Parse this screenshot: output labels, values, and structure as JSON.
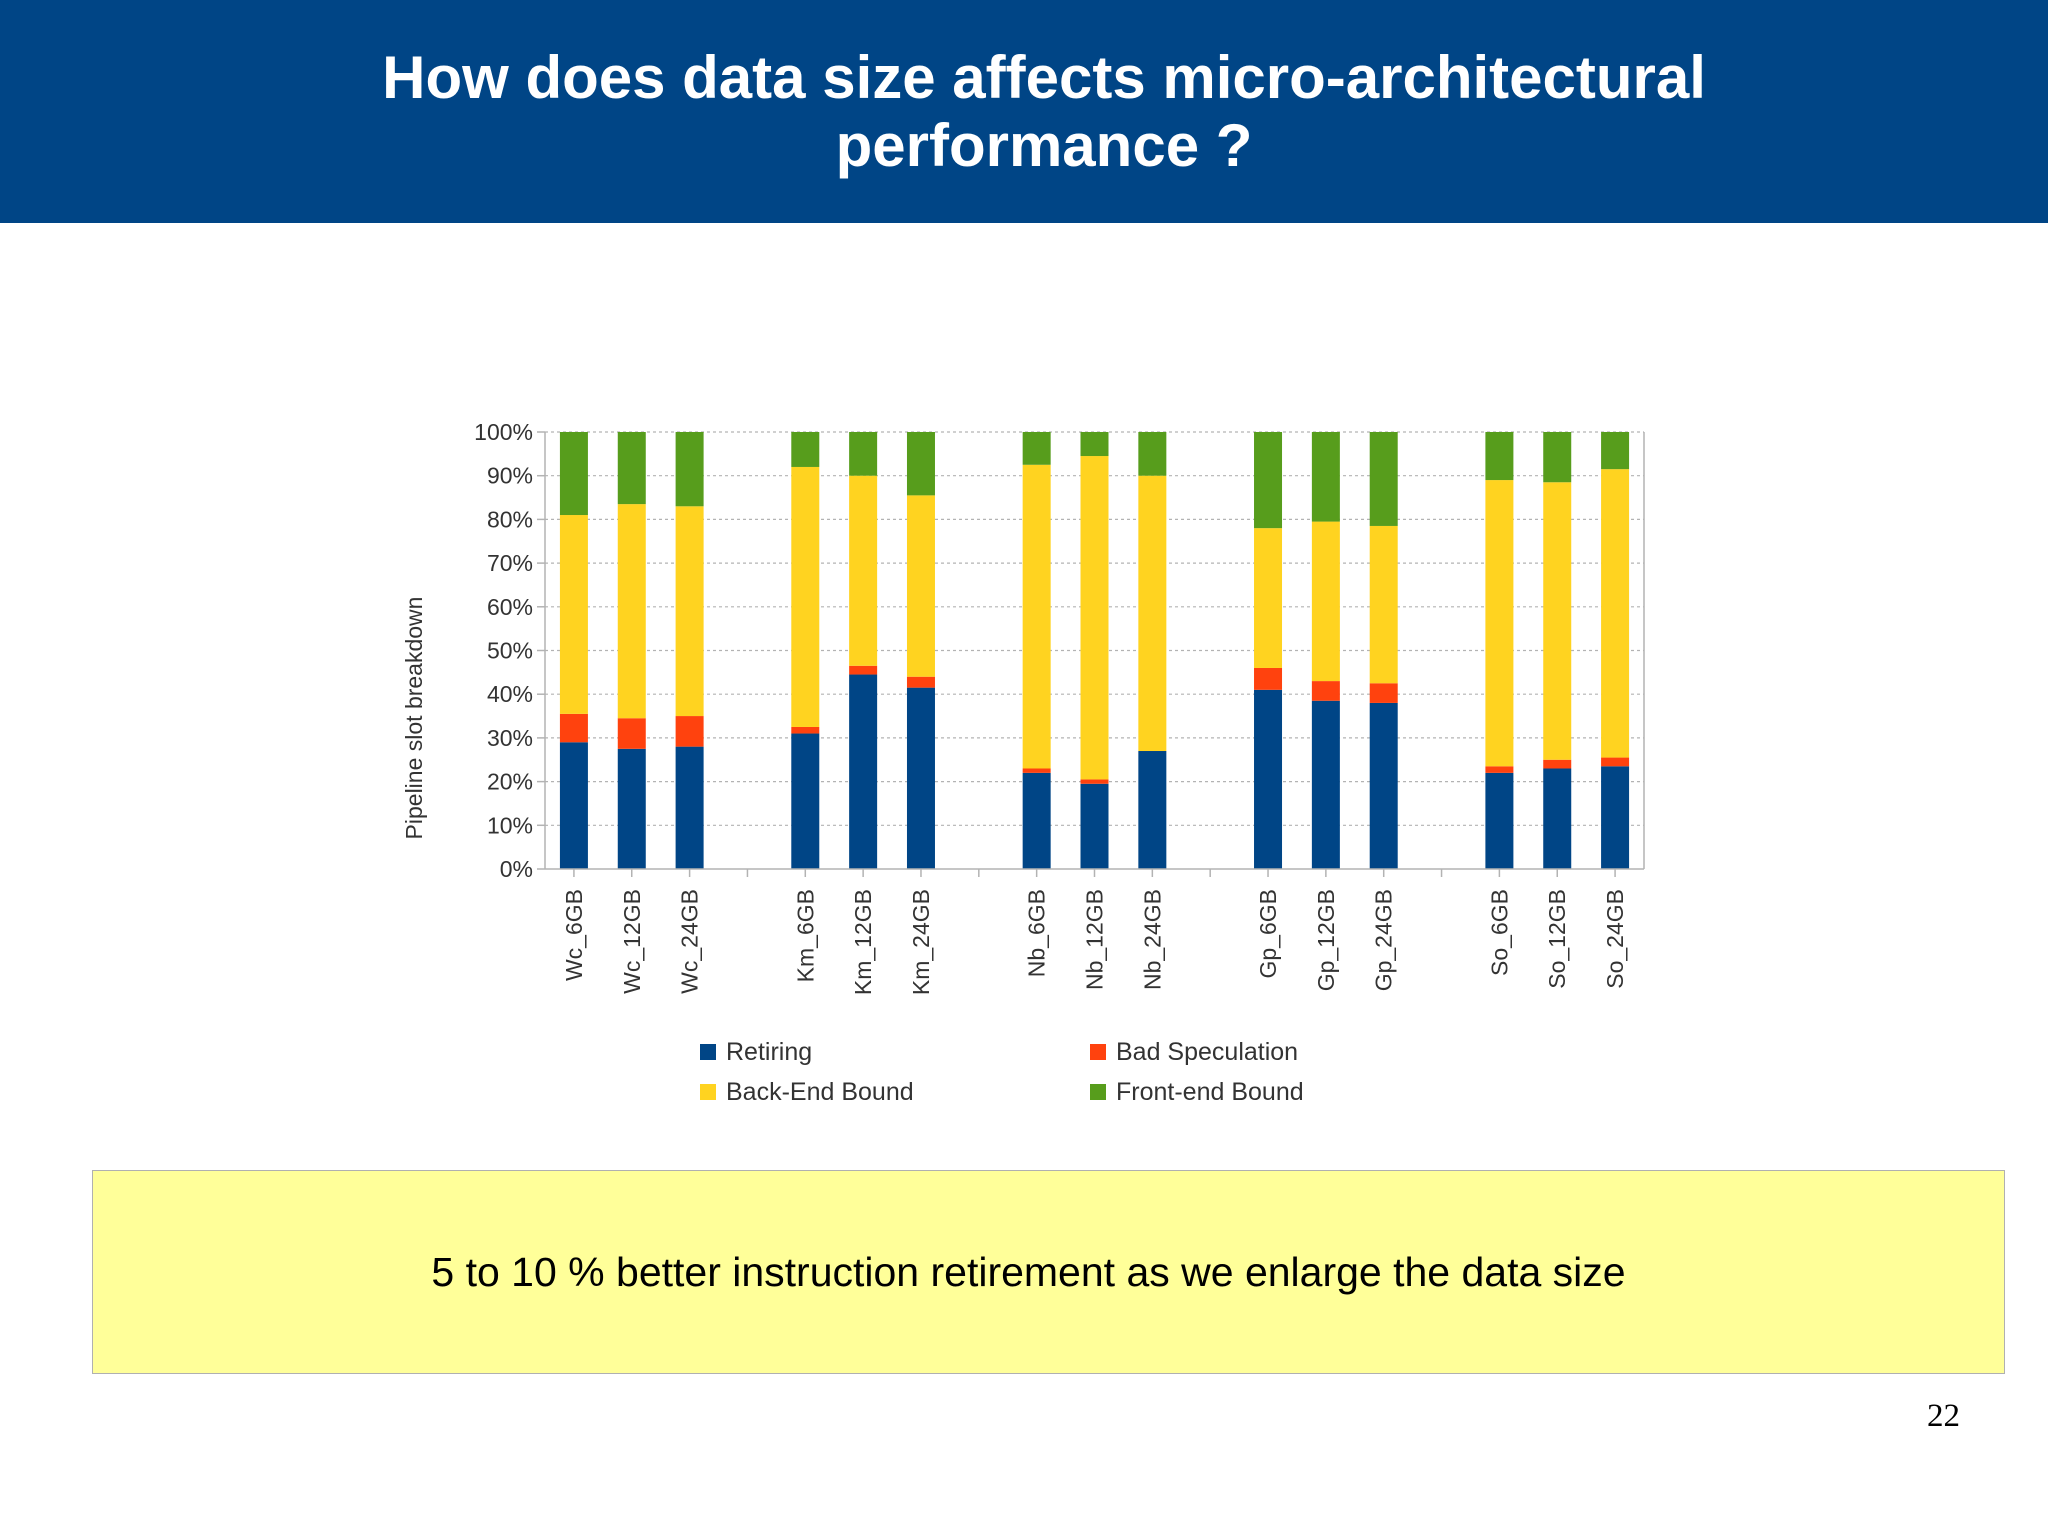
{
  "slide": {
    "title": "How does data size affects micro-architectural performance ?",
    "note": "5 to 10 % better instruction retirement as we enlarge the data size",
    "page_number": "22"
  },
  "colors": {
    "header_bg": "#004586",
    "note_bg": "#ffff99",
    "retiring": "#004586",
    "bad_speculation": "#ff420e",
    "back_end_bound": "#ffd320",
    "front_end_bound": "#579d1c"
  },
  "chart_data": {
    "type": "bar",
    "stacked": true,
    "ylabel": "Pipeline slot breakdown",
    "xlabel": "",
    "ylim": [
      0,
      100
    ],
    "ytick_labels": [
      "0%",
      "10%",
      "20%",
      "30%",
      "40%",
      "50%",
      "60%",
      "70%",
      "80%",
      "90%",
      "100%"
    ],
    "grid": true,
    "legend_position": "bottom",
    "categories": [
      "Wc_6GB",
      "Wc_12GB",
      "Wc_24GB",
      "Km_6GB",
      "Km_12GB",
      "Km_24GB",
      "Nb_6GB",
      "Nb_12GB",
      "Nb_24GB",
      "Gp_6GB",
      "Gp_12GB",
      "Gp_24GB",
      "So_6GB",
      "So_12GB",
      "So_24GB"
    ],
    "groups": [
      [
        "Wc_6GB",
        "Wc_12GB",
        "Wc_24GB"
      ],
      [
        "Km_6GB",
        "Km_12GB",
        "Km_24GB"
      ],
      [
        "Nb_6GB",
        "Nb_12GB",
        "Nb_24GB"
      ],
      [
        "Gp_6GB",
        "Gp_12GB",
        "Gp_24GB"
      ],
      [
        "So_6GB",
        "So_12GB",
        "So_24GB"
      ]
    ],
    "series": [
      {
        "name": "Retiring",
        "color": "#004586",
        "values": [
          29,
          27.5,
          28,
          31,
          44.5,
          41.5,
          22,
          19.5,
          27,
          41,
          38.5,
          38,
          22,
          23,
          23.5
        ]
      },
      {
        "name": "Bad Speculation",
        "color": "#ff420e",
        "values": [
          6.5,
          7,
          7,
          1.5,
          2,
          2.5,
          1,
          1,
          0,
          5,
          4.5,
          4.5,
          1.5,
          2,
          2
        ]
      },
      {
        "name": "Back-End Bound",
        "color": "#ffd320",
        "values": [
          45.5,
          49,
          48,
          59.5,
          43.5,
          41.5,
          69.5,
          74,
          63,
          32,
          36.5,
          36,
          65.5,
          63.5,
          66
        ]
      },
      {
        "name": "Front-end Bound",
        "color": "#579d1c",
        "values": [
          19,
          16.5,
          17,
          8,
          10,
          14.5,
          7.5,
          5.5,
          10,
          22,
          20.5,
          21.5,
          11,
          11.5,
          8.5
        ]
      }
    ]
  }
}
